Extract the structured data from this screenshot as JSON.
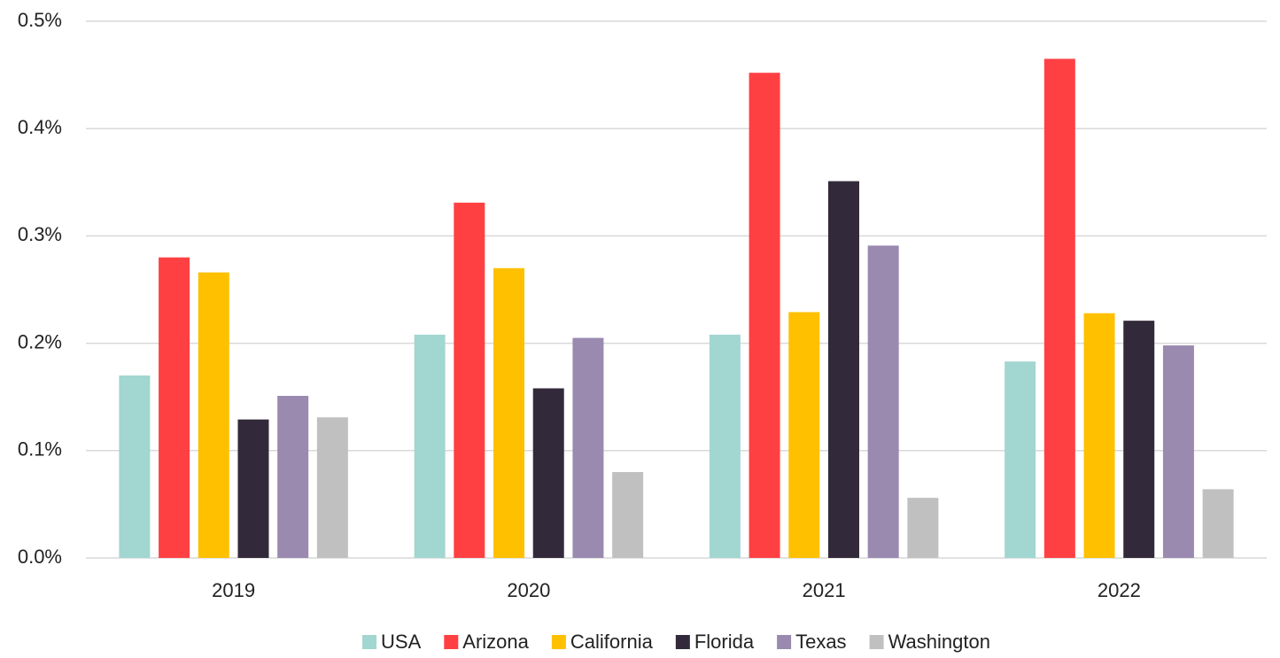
{
  "chart_data": {
    "type": "bar",
    "categories": [
      "2019",
      "2020",
      "2021",
      "2022"
    ],
    "series": [
      {
        "name": "USA",
        "color": "#a2d6d0",
        "values": [
          0.17,
          0.208,
          0.208,
          0.183
        ]
      },
      {
        "name": "Arizona",
        "color": "#ff4043",
        "values": [
          0.28,
          0.331,
          0.452,
          0.465
        ]
      },
      {
        "name": "California",
        "color": "#ffc000",
        "values": [
          0.266,
          0.27,
          0.229,
          0.228
        ]
      },
      {
        "name": "Florida",
        "color": "#322a3a",
        "values": [
          0.129,
          0.158,
          0.351,
          0.221
        ]
      },
      {
        "name": "Texas",
        "color": "#9a8aaf",
        "values": [
          0.151,
          0.205,
          0.291,
          0.198
        ]
      },
      {
        "name": "Washington",
        "color": "#c0c0c0",
        "values": [
          0.131,
          0.08,
          0.056,
          0.064
        ]
      }
    ],
    "ylim": [
      0,
      0.5
    ],
    "yticks": [
      {
        "value": 0,
        "label": "0.0%"
      },
      {
        "value": 0.1,
        "label": "0.1%"
      },
      {
        "value": 0.2,
        "label": "0.2%"
      },
      {
        "value": 0.3,
        "label": "0.3%"
      },
      {
        "value": 0.4,
        "label": "0.4%"
      },
      {
        "value": 0.5,
        "label": "0.5%"
      }
    ],
    "grid": true,
    "legend": "bottom"
  }
}
